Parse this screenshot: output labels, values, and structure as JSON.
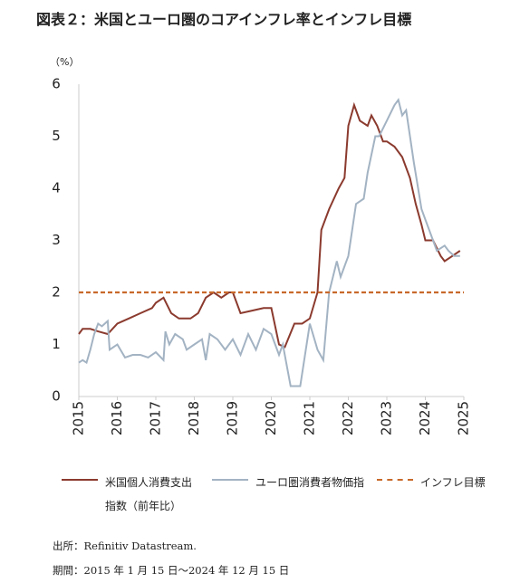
{
  "chart_data": {
    "type": "line",
    "title": "図表２：米国とユーロ圏のコアインフレ率とインフレ目標",
    "y_unit": "（%）",
    "xlim": [
      2015,
      2025
    ],
    "xticks": [
      2015,
      2016,
      2017,
      2018,
      2019,
      2020,
      2021,
      2022,
      2023,
      2024,
      2025
    ],
    "ylim": [
      0,
      6
    ],
    "yticks": [
      0,
      1,
      2,
      3,
      4,
      5,
      6
    ],
    "grid": false,
    "series": [
      {
        "name": "米国個人消費支出指数（前年比）",
        "color": "#8b3a2e",
        "dash": false,
        "x": [
          2015.0,
          2015.1,
          2015.3,
          2015.5,
          2015.75,
          2016.0,
          2016.3,
          2016.6,
          2016.9,
          2017.0,
          2017.2,
          2017.4,
          2017.6,
          2017.9,
          2018.1,
          2018.3,
          2018.5,
          2018.7,
          2018.9,
          2019.0,
          2019.2,
          2019.5,
          2019.8,
          2020.0,
          2020.2,
          2020.35,
          2020.6,
          2020.8,
          2021.0,
          2021.2,
          2021.3,
          2021.5,
          2021.75,
          2021.9,
          2022.0,
          2022.15,
          2022.3,
          2022.5,
          2022.6,
          2022.75,
          2022.9,
          2023.0,
          2023.2,
          2023.4,
          2023.6,
          2023.75,
          2023.9,
          2024.0,
          2024.2,
          2024.4,
          2024.5,
          2024.7,
          2024.9
        ],
        "values": [
          1.2,
          1.3,
          1.3,
          1.25,
          1.2,
          1.4,
          1.5,
          1.6,
          1.7,
          1.8,
          1.9,
          1.6,
          1.5,
          1.5,
          1.6,
          1.9,
          2.0,
          1.9,
          2.0,
          2.0,
          1.6,
          1.65,
          1.7,
          1.7,
          1.0,
          0.95,
          1.4,
          1.4,
          1.5,
          2.0,
          3.2,
          3.6,
          4.0,
          4.2,
          5.2,
          5.6,
          5.3,
          5.2,
          5.4,
          5.2,
          4.9,
          4.9,
          4.8,
          4.6,
          4.2,
          3.7,
          3.3,
          3.0,
          3.0,
          2.7,
          2.6,
          2.7,
          2.8
        ]
      },
      {
        "name": "ユーロ圏消費者物価指",
        "color": "#a3b3c3",
        "dash": false,
        "x": [
          2015.0,
          2015.1,
          2015.2,
          2015.3,
          2015.4,
          2015.5,
          2015.6,
          2015.75,
          2015.8,
          2016.0,
          2016.2,
          2016.4,
          2016.6,
          2016.8,
          2017.0,
          2017.2,
          2017.25,
          2017.35,
          2017.5,
          2017.7,
          2017.8,
          2018.0,
          2018.2,
          2018.3,
          2018.4,
          2018.6,
          2018.8,
          2019.0,
          2019.2,
          2019.4,
          2019.6,
          2019.8,
          2020.0,
          2020.2,
          2020.3,
          2020.5,
          2020.6,
          2020.75,
          2021.0,
          2021.2,
          2021.35,
          2021.5,
          2021.7,
          2021.8,
          2022.0,
          2022.2,
          2022.4,
          2022.5,
          2022.7,
          2022.8,
          2023.0,
          2023.2,
          2023.3,
          2023.4,
          2023.5,
          2023.7,
          2023.9,
          2024.0,
          2024.2,
          2024.3,
          2024.5,
          2024.6,
          2024.75,
          2024.9
        ],
        "values": [
          0.65,
          0.7,
          0.65,
          0.9,
          1.2,
          1.4,
          1.35,
          1.45,
          0.9,
          1.0,
          0.75,
          0.8,
          0.8,
          0.75,
          0.85,
          0.7,
          1.25,
          1.0,
          1.2,
          1.1,
          0.9,
          1.0,
          1.1,
          0.7,
          1.2,
          1.1,
          0.9,
          1.1,
          0.8,
          1.2,
          0.9,
          1.3,
          1.2,
          0.8,
          1.0,
          0.2,
          0.2,
          0.2,
          1.4,
          0.9,
          0.7,
          2.0,
          2.6,
          2.3,
          2.7,
          3.7,
          3.8,
          4.3,
          5.0,
          5.0,
          5.3,
          5.6,
          5.7,
          5.4,
          5.5,
          4.5,
          3.6,
          3.4,
          3.0,
          2.8,
          2.9,
          2.8,
          2.7,
          2.7
        ]
      },
      {
        "name": "インフレ目標",
        "color": "#c8692a",
        "dash": true,
        "x": [
          2015,
          2025
        ],
        "values": [
          2,
          2
        ]
      }
    ],
    "source": "出所：Refinitiv Datastream.",
    "period": "期間：2015 年 1 月 15 日～2024 年 12 月 15 日"
  }
}
